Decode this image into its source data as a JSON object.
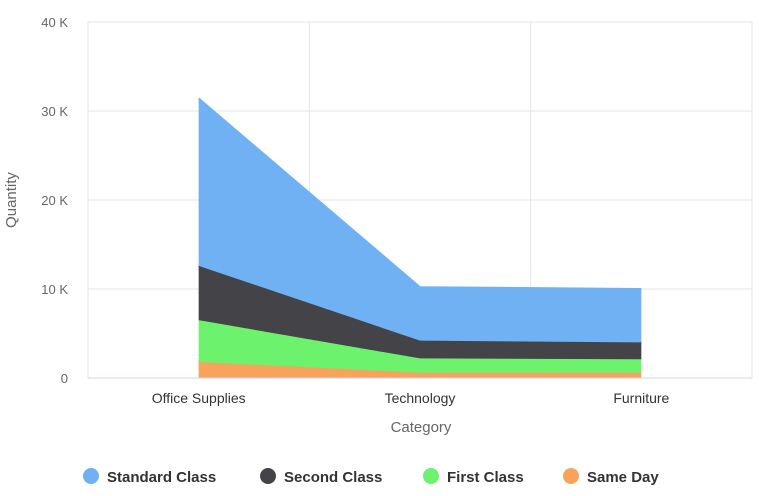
{
  "chart_data": {
    "type": "area",
    "stacked": true,
    "categories": [
      "Office Supplies",
      "Technology",
      "Furniture"
    ],
    "xlabel": "Category",
    "ylabel": "Quantity",
    "ylim": [
      0,
      40000
    ],
    "yticks": [
      {
        "value": 0,
        "label": "0"
      },
      {
        "value": 10000,
        "label": "10 K"
      },
      {
        "value": 20000,
        "label": "20 K"
      },
      {
        "value": 30000,
        "label": "30 K"
      },
      {
        "value": 40000,
        "label": "40 K"
      }
    ],
    "grid": true,
    "legend_position": "bottom",
    "series": [
      {
        "name": "Same Day",
        "color": "#f7a35c",
        "values": [
          1800,
          600,
          600
        ]
      },
      {
        "name": "First Class",
        "color": "#6cf26c",
        "values": [
          4700,
          1600,
          1500
        ]
      },
      {
        "name": "Second Class",
        "color": "#434348",
        "values": [
          6100,
          2000,
          1900
        ]
      },
      {
        "name": "Standard Class",
        "color": "#6fb1f2",
        "values": [
          18800,
          6000,
          6000
        ]
      }
    ],
    "legend_order": [
      "Standard Class",
      "Second Class",
      "First Class",
      "Same Day"
    ]
  }
}
